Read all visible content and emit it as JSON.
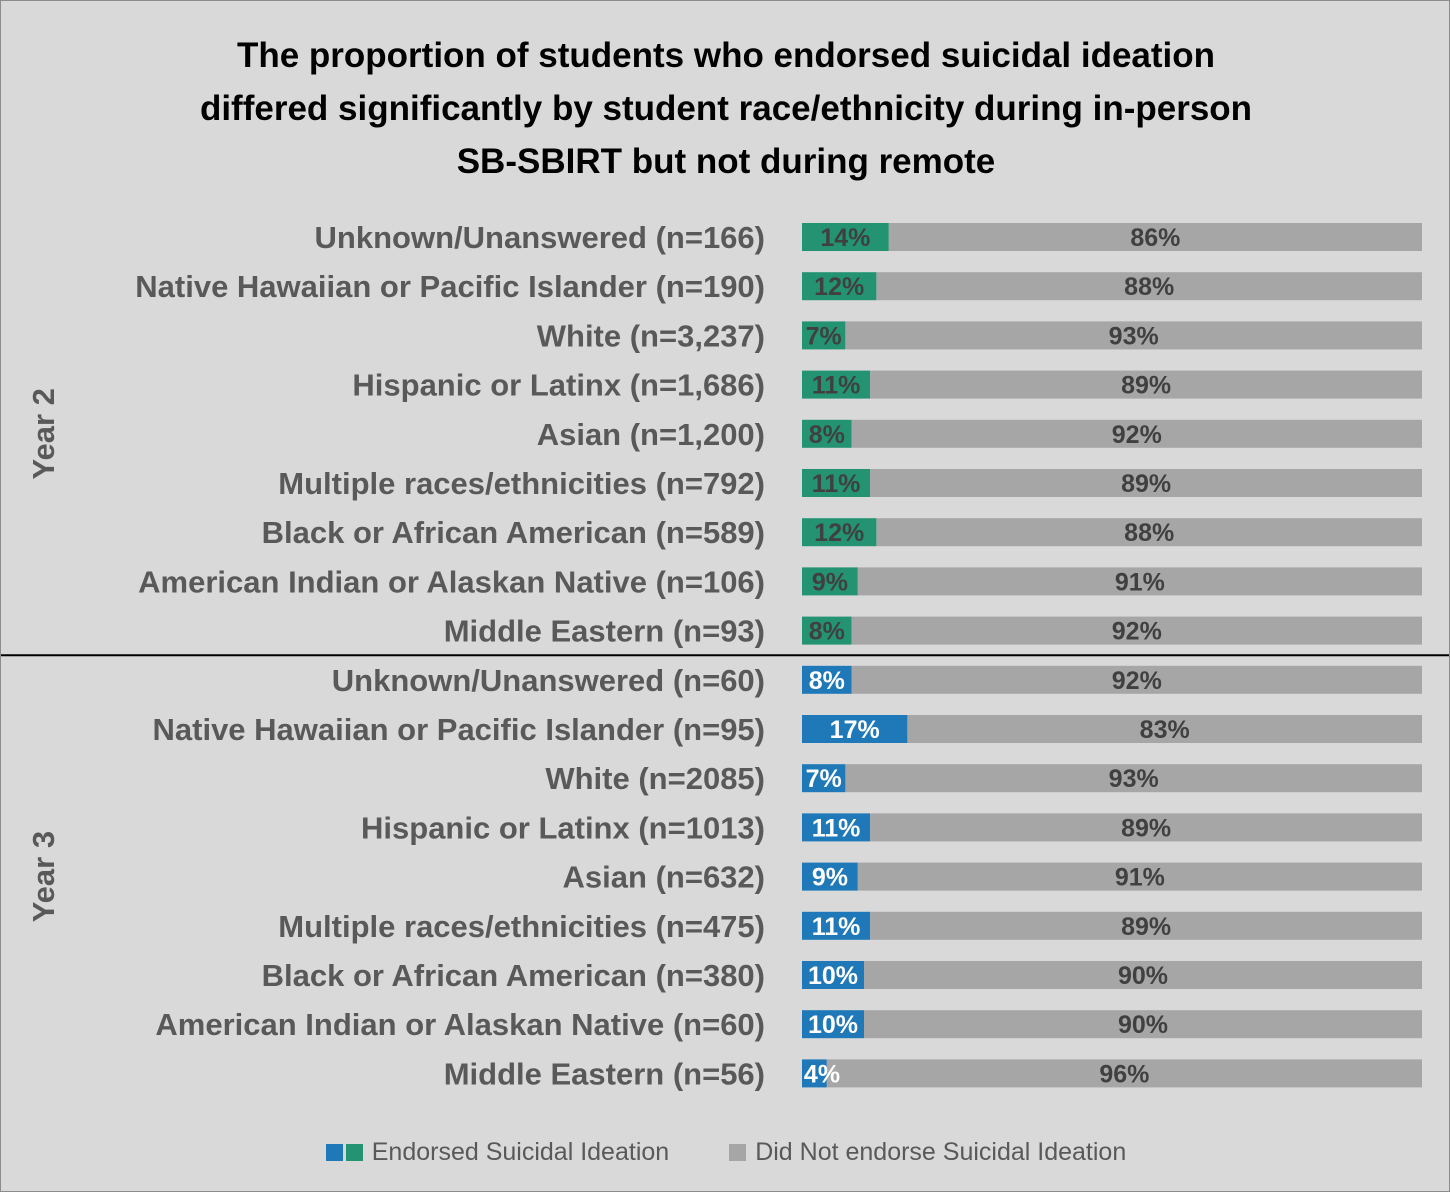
{
  "title_lines": [
    "The proportion of students who endorsed suicidal ideation",
    "differed significantly by student race/ethnicity during in-person",
    "SB-SBIRT but not during remote"
  ],
  "legend": {
    "endorsed": "Endorsed Suicidal Ideation",
    "not_endorsed": "Did Not endorse Suicidal Ideation"
  },
  "colors": {
    "year2_endorsed": "#239371",
    "year3_endorsed": "#1f78b8",
    "not_endorsed": "#a6a6a6",
    "background": "#d9d9d9",
    "divider": "#000000"
  },
  "chart_data": {
    "type": "bar",
    "orientation": "horizontal",
    "stacked": true,
    "xlim": [
      0,
      100
    ],
    "unit": "%",
    "grid": false,
    "legend_position": "bottom",
    "groups": [
      {
        "label": "Year 2",
        "categories": [
          "Unknown/Unanswered (n=166)",
          "Native Hawaiian or Pacific Islander (n=190)",
          "White (n=3,237)",
          "Hispanic or Latinx (n=1,686)",
          "Asian (n=1,200)",
          "Multiple races/ethnicities (n=792)",
          "Black or African American (n=589)",
          "American Indian or Alaskan Native (n=106)",
          "Middle Eastern (n=93)"
        ],
        "series": [
          {
            "name": "Endorsed Suicidal Ideation",
            "values": [
              14,
              12,
              7,
              11,
              8,
              11,
              12,
              9,
              8
            ]
          },
          {
            "name": "Did Not endorse Suicidal Ideation",
            "values": [
              86,
              88,
              93,
              89,
              92,
              89,
              88,
              91,
              92
            ]
          }
        ]
      },
      {
        "label": "Year 3",
        "categories": [
          "Unknown/Unanswered (n=60)",
          "Native Hawaiian or Pacific Islander (n=95)",
          "White (n=2085)",
          "Hispanic or Latinx (n=1013)",
          "Asian (n=632)",
          "Multiple races/ethnicities (n=475)",
          "Black or African American (n=380)",
          "American Indian or Alaskan Native (n=60)",
          "Middle Eastern (n=56)"
        ],
        "series": [
          {
            "name": "Endorsed Suicidal Ideation",
            "values": [
              8,
              17,
              7,
              11,
              9,
              11,
              10,
              10,
              4
            ]
          },
          {
            "name": "Did Not endorse Suicidal Ideation",
            "values": [
              92,
              83,
              93,
              89,
              91,
              89,
              90,
              90,
              96
            ]
          }
        ]
      }
    ]
  }
}
